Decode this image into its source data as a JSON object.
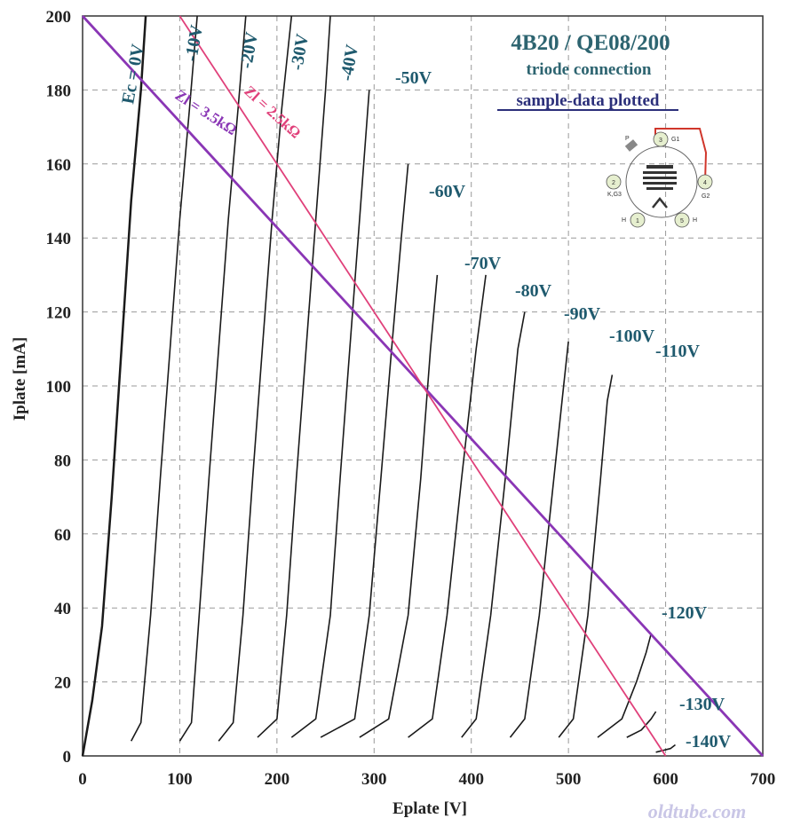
{
  "chart_data": {
    "type": "line",
    "title": "4B20  /  QE08/200",
    "subtitle": "triode connection",
    "note": "sample-data plotted",
    "xlabel": "Eplate [V]",
    "ylabel": "Iplate [mA]",
    "xlim": [
      0,
      700
    ],
    "ylim": [
      0,
      200
    ],
    "xticks": [
      0,
      100,
      200,
      300,
      400,
      500,
      600,
      700
    ],
    "yticks": [
      0,
      20,
      40,
      60,
      80,
      100,
      120,
      140,
      160,
      180,
      200
    ],
    "grid": true,
    "series": [
      {
        "name": "Ec = 0V",
        "points": [
          [
            0,
            0
          ],
          [
            10,
            15
          ],
          [
            20,
            35
          ],
          [
            30,
            70
          ],
          [
            40,
            110
          ],
          [
            50,
            150
          ],
          [
            60,
            180
          ],
          [
            65,
            200
          ]
        ]
      },
      {
        "name": "-10V",
        "points": [
          [
            50,
            4
          ],
          [
            60,
            9
          ],
          [
            70,
            38
          ],
          [
            80,
            75
          ],
          [
            90,
            110
          ],
          [
            100,
            145
          ],
          [
            110,
            175
          ],
          [
            118,
            200
          ]
        ]
      },
      {
        "name": "-20V",
        "points": [
          [
            100,
            4
          ],
          [
            112,
            9
          ],
          [
            120,
            38
          ],
          [
            130,
            75
          ],
          [
            140,
            110
          ],
          [
            150,
            145
          ],
          [
            160,
            175
          ],
          [
            168,
            200
          ]
        ]
      },
      {
        "name": "-30V",
        "points": [
          [
            140,
            4
          ],
          [
            155,
            9
          ],
          [
            165,
            38
          ],
          [
            175,
            75
          ],
          [
            185,
            110
          ],
          [
            195,
            145
          ],
          [
            205,
            175
          ],
          [
            215,
            200
          ]
        ]
      },
      {
        "name": "-40V",
        "points": [
          [
            180,
            5
          ],
          [
            200,
            10
          ],
          [
            210,
            38
          ],
          [
            220,
            75
          ],
          [
            230,
            110
          ],
          [
            240,
            145
          ],
          [
            250,
            180
          ],
          [
            255,
            200
          ]
        ]
      },
      {
        "name": "-50V",
        "points": [
          [
            215,
            5
          ],
          [
            240,
            10
          ],
          [
            255,
            38
          ],
          [
            265,
            75
          ],
          [
            275,
            110
          ],
          [
            285,
            145
          ],
          [
            295,
            180
          ]
        ]
      },
      {
        "name": "-60V",
        "points": [
          [
            245,
            5
          ],
          [
            280,
            10
          ],
          [
            295,
            38
          ],
          [
            307,
            75
          ],
          [
            318,
            110
          ],
          [
            328,
            140
          ],
          [
            335,
            160
          ]
        ]
      },
      {
        "name": "-70V",
        "points": [
          [
            285,
            5
          ],
          [
            315,
            10
          ],
          [
            335,
            38
          ],
          [
            348,
            75
          ],
          [
            358,
            110
          ],
          [
            365,
            130
          ]
        ]
      },
      {
        "name": "-80V",
        "points": [
          [
            335,
            5
          ],
          [
            360,
            10
          ],
          [
            375,
            38
          ],
          [
            390,
            75
          ],
          [
            405,
            110
          ],
          [
            415,
            130
          ]
        ]
      },
      {
        "name": "-90V",
        "points": [
          [
            390,
            5
          ],
          [
            405,
            10
          ],
          [
            420,
            38
          ],
          [
            435,
            75
          ],
          [
            448,
            110
          ],
          [
            455,
            120
          ]
        ]
      },
      {
        "name": "-100V",
        "points": [
          [
            440,
            5
          ],
          [
            455,
            10
          ],
          [
            470,
            38
          ],
          [
            485,
            75
          ],
          [
            495,
            100
          ],
          [
            500,
            112
          ]
        ]
      },
      {
        "name": "-110V",
        "points": [
          [
            490,
            5
          ],
          [
            505,
            10
          ],
          [
            520,
            38
          ],
          [
            533,
            75
          ],
          [
            540,
            96
          ],
          [
            545,
            103
          ]
        ]
      },
      {
        "name": "-120V",
        "points": [
          [
            530,
            5
          ],
          [
            555,
            10
          ],
          [
            570,
            20
          ],
          [
            580,
            28
          ],
          [
            585,
            33
          ]
        ]
      },
      {
        "name": "-130V",
        "points": [
          [
            560,
            5
          ],
          [
            575,
            7
          ],
          [
            585,
            10
          ],
          [
            590,
            12
          ]
        ]
      },
      {
        "name": "-140V",
        "points": [
          [
            590,
            1
          ],
          [
            605,
            2
          ],
          [
            610,
            3
          ]
        ]
      }
    ],
    "load_lines": [
      {
        "name": "Zl = 3.5kΩ",
        "points": [
          [
            0,
            200
          ],
          [
            700,
            0
          ]
        ],
        "color": "#8a36b5"
      },
      {
        "name": "Zl = 2.5kΩ",
        "points": [
          [
            100,
            200
          ],
          [
            600,
            0
          ]
        ],
        "color": "#e0407a"
      }
    ]
  },
  "watermark": "oldtube.com",
  "tube_diagram": {
    "pins": [
      {
        "num": "1",
        "label": "H"
      },
      {
        "num": "2",
        "label": "K,G3"
      },
      {
        "num": "3",
        "label": "G1"
      },
      {
        "num": "4",
        "label": "G2"
      },
      {
        "num": "5",
        "label": "H"
      }
    ],
    "plate_label": "P"
  }
}
